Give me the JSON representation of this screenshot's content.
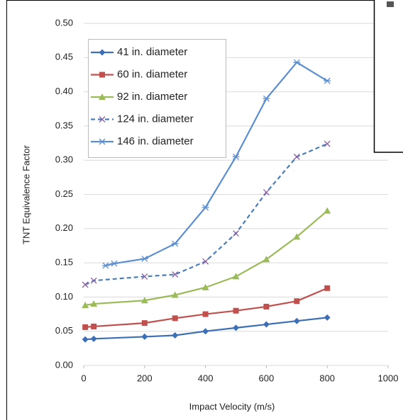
{
  "chart_data": {
    "type": "line",
    "x_label": "Impact Velocity (m/s)",
    "y_label": "TNT Equivalence Factor",
    "xlim": [
      0,
      1000
    ],
    "xticks": [
      0,
      200,
      400,
      600,
      800,
      1000
    ],
    "ylim": [
      0,
      0.5
    ],
    "yticks": [
      {
        "value": 0,
        "label": "0.00"
      },
      {
        "value": 0.05,
        "label": "0.05"
      },
      {
        "value": 0.1,
        "label": "0.10"
      },
      {
        "value": 0.15,
        "label": "0.15"
      },
      {
        "value": 0.2,
        "label": "0.20"
      },
      {
        "value": 0.25,
        "label": "0.25"
      },
      {
        "value": 0.3,
        "label": "0.30"
      },
      {
        "value": 0.35,
        "label": "0.35"
      },
      {
        "value": 0.4,
        "label": "0.40"
      },
      {
        "value": 0.45,
        "label": "0.45"
      },
      {
        "value": 0.5,
        "label": "0.50"
      }
    ],
    "grid": true,
    "legend": "upper left",
    "series": [
      {
        "name": "41 in. diameter",
        "color": "#3d6fb6",
        "marker": "diamond",
        "dashed": false,
        "x": [
          5,
          33,
          200,
          300,
          400,
          500,
          600,
          700,
          800
        ],
        "values": [
          0.038,
          0.039,
          0.042,
          0.044,
          0.05,
          0.055,
          0.06,
          0.065,
          0.07
        ]
      },
      {
        "name": "60 in. diameter",
        "color": "#c0504d",
        "marker": "square",
        "dashed": false,
        "x": [
          5,
          33,
          200,
          300,
          400,
          500,
          600,
          700,
          800
        ],
        "values": [
          0.056,
          0.057,
          0.062,
          0.069,
          0.075,
          0.08,
          0.086,
          0.094,
          0.113
        ]
      },
      {
        "name": "92 in. diameter",
        "color": "#9bbb59",
        "marker": "triangle",
        "dashed": false,
        "x": [
          5,
          33,
          200,
          300,
          400,
          500,
          600,
          700,
          800
        ],
        "values": [
          0.088,
          0.09,
          0.095,
          0.103,
          0.114,
          0.13,
          0.155,
          0.188,
          0.226
        ]
      },
      {
        "name": "124 in. diameter",
        "color": "#4a7ebb",
        "marker": "x",
        "dashed": true,
        "x": [
          5,
          33,
          200,
          300,
          400,
          500,
          600,
          700,
          800
        ],
        "values": [
          0.118,
          0.124,
          0.13,
          0.133,
          0.152,
          0.193,
          0.253,
          0.305,
          0.324
        ]
      },
      {
        "name": "146 in. diameter",
        "color": "#5a8ed0",
        "marker": "star",
        "dashed": false,
        "x": [
          72,
          100,
          200,
          300,
          400,
          500,
          600,
          700,
          800
        ],
        "values": [
          0.146,
          0.149,
          0.156,
          0.178,
          0.231,
          0.305,
          0.39,
          0.443,
          0.416
        ]
      }
    ]
  }
}
